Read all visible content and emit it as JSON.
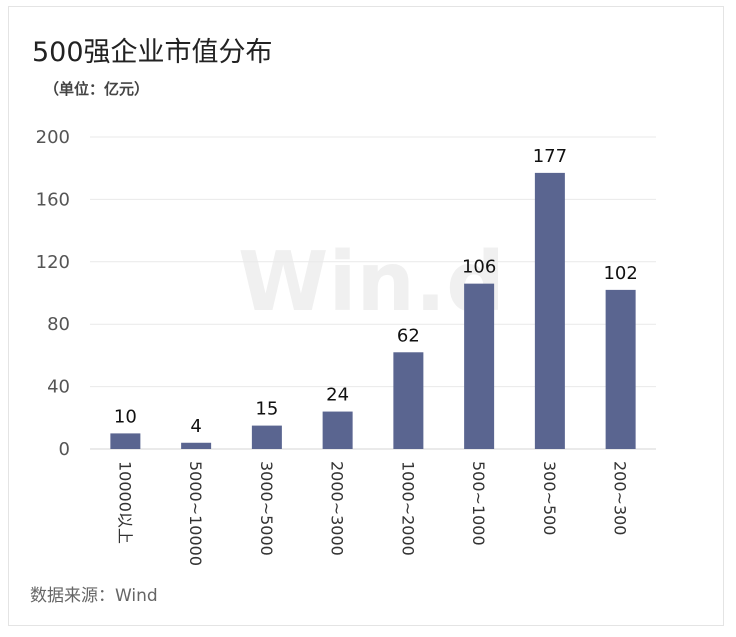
{
  "chart_data": {
    "type": "bar",
    "title": "500强企业市值分布",
    "subtitle": "（单位：亿元）",
    "categories": [
      "10000以上",
      "5000~10000",
      "3000~5000",
      "2000~3000",
      "1000~2000",
      "500~1000",
      "300~500",
      "200~300"
    ],
    "values": [
      10,
      4,
      15,
      24,
      62,
      106,
      177,
      102
    ],
    "yticks": [
      0,
      40,
      80,
      120,
      160,
      200
    ],
    "ylim": [
      0,
      200
    ],
    "grid": true,
    "legend": "none",
    "bar_color": "#5a6590",
    "source": "数据来源：Wind",
    "watermark": "Win.d"
  }
}
